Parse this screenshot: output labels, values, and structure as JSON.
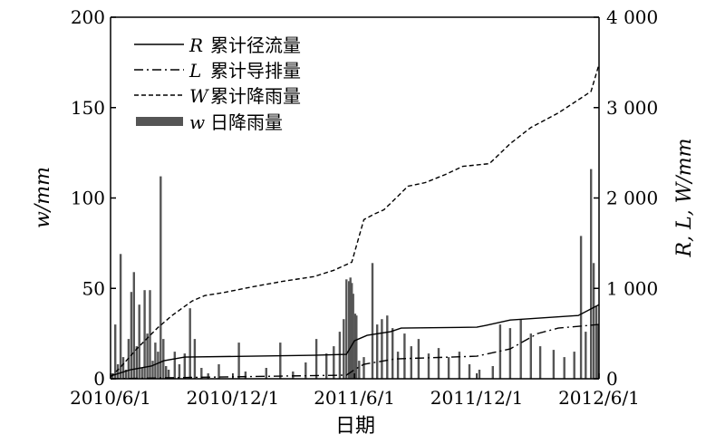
{
  "chart_data": {
    "type": "line",
    "xlabel": "日期",
    "ylabel_left": "w/mm",
    "ylabel_right": "R, L, W/mm",
    "x_ticks": [
      "2010/6/1",
      "2010/12/1",
      "2011/6/1",
      "2011/12/1",
      "2012/6/1"
    ],
    "left_axis": {
      "ylim": [
        0,
        200
      ],
      "ticks": [
        "0",
        "50",
        "100",
        "150",
        "200"
      ]
    },
    "right_axis": {
      "ylim": [
        0,
        4000
      ],
      "ticks": [
        "0",
        "1 000",
        "2 000",
        "3 000",
        "4 000"
      ]
    },
    "grid": false,
    "legend_position": "top-left",
    "legend": [
      {
        "symbol": "R",
        "label": "累计径流量",
        "style": "solid"
      },
      {
        "symbol": "L",
        "label": "累计导排量",
        "style": "dashdot"
      },
      {
        "symbol": "W",
        "label": "累计降雨量",
        "style": "dashed"
      },
      {
        "symbol": "w",
        "label": "日降雨量",
        "style": "bar"
      }
    ],
    "series": [
      {
        "name": "R 累计径流量",
        "axis": "right",
        "style": "solid",
        "points": [
          [
            "2010-06-01",
            30
          ],
          [
            "2010-07-01",
            100
          ],
          [
            "2010-08-01",
            140
          ],
          [
            "2010-08-20",
            200
          ],
          [
            "2010-09-20",
            240
          ],
          [
            "2011-04-01",
            260
          ],
          [
            "2011-05-20",
            270
          ],
          [
            "2011-06-01",
            420
          ],
          [
            "2011-06-20",
            480
          ],
          [
            "2011-07-25",
            520
          ],
          [
            "2011-08-10",
            560
          ],
          [
            "2011-12-01",
            570
          ],
          [
            "2011-12-15",
            590
          ],
          [
            "2012-01-20",
            650
          ],
          [
            "2012-05-01",
            700
          ],
          [
            "2012-06-01",
            820
          ]
        ]
      },
      {
        "name": "L 累计导排量",
        "axis": "right",
        "style": "dashdot",
        "points": [
          [
            "2010-06-01",
            0
          ],
          [
            "2010-10-01",
            15
          ],
          [
            "2011-05-20",
            40
          ],
          [
            "2011-06-01",
            100
          ],
          [
            "2011-06-15",
            160
          ],
          [
            "2011-08-01",
            220
          ],
          [
            "2011-12-01",
            250
          ],
          [
            "2012-01-20",
            330
          ],
          [
            "2012-03-01",
            500
          ],
          [
            "2012-04-01",
            560
          ],
          [
            "2012-06-01",
            600
          ]
        ]
      },
      {
        "name": "W 累计降雨量",
        "axis": "right",
        "style": "dashed",
        "points": [
          [
            "2010-06-01",
            20
          ],
          [
            "2010-06-15",
            120
          ],
          [
            "2010-07-10",
            330
          ],
          [
            "2010-08-10",
            560
          ],
          [
            "2010-09-01",
            700
          ],
          [
            "2010-10-01",
            860
          ],
          [
            "2010-10-20",
            920
          ],
          [
            "2010-11-15",
            950
          ],
          [
            "2011-01-01",
            1020
          ],
          [
            "2011-02-15",
            1080
          ],
          [
            "2011-04-01",
            1130
          ],
          [
            "2011-05-01",
            1200
          ],
          [
            "2011-05-28",
            1290
          ],
          [
            "2011-06-05",
            1500
          ],
          [
            "2011-06-15",
            1760
          ],
          [
            "2011-06-30",
            1820
          ],
          [
            "2011-07-15",
            1870
          ],
          [
            "2011-08-05",
            2020
          ],
          [
            "2011-08-20",
            2130
          ],
          [
            "2011-09-15",
            2170
          ],
          [
            "2011-10-15",
            2260
          ],
          [
            "2011-11-10",
            2350
          ],
          [
            "2011-12-20",
            2380
          ],
          [
            "2012-01-20",
            2600
          ],
          [
            "2012-02-20",
            2780
          ],
          [
            "2012-04-01",
            2940
          ],
          [
            "2012-05-10",
            3130
          ],
          [
            "2012-05-20",
            3180
          ],
          [
            "2012-06-01",
            3480
          ]
        ]
      }
    ],
    "daily_rainfall": {
      "name": "w 日降雨量",
      "axis": "left",
      "points": [
        [
          "2010-06-04",
          3
        ],
        [
          "2010-06-08",
          30
        ],
        [
          "2010-06-12",
          8
        ],
        [
          "2010-06-16",
          69
        ],
        [
          "2010-06-20",
          12
        ],
        [
          "2010-06-24",
          5
        ],
        [
          "2010-06-28",
          22
        ],
        [
          "2010-07-02",
          48
        ],
        [
          "2010-07-06",
          59
        ],
        [
          "2010-07-10",
          18
        ],
        [
          "2010-07-14",
          41
        ],
        [
          "2010-07-18",
          6
        ],
        [
          "2010-07-22",
          49
        ],
        [
          "2010-07-26",
          25
        ],
        [
          "2010-07-30",
          49
        ],
        [
          "2010-08-03",
          10
        ],
        [
          "2010-08-07",
          20
        ],
        [
          "2010-08-11",
          15
        ],
        [
          "2010-08-15",
          112
        ],
        [
          "2010-08-19",
          22
        ],
        [
          "2010-08-23",
          7
        ],
        [
          "2010-08-27",
          5
        ],
        [
          "2010-09-05",
          15
        ],
        [
          "2010-09-12",
          8
        ],
        [
          "2010-09-20",
          14
        ],
        [
          "2010-09-28",
          39
        ],
        [
          "2010-10-05",
          22
        ],
        [
          "2010-10-15",
          6
        ],
        [
          "2010-10-25",
          3
        ],
        [
          "2010-11-10",
          8
        ],
        [
          "2010-12-10",
          20
        ],
        [
          "2010-12-20",
          4
        ],
        [
          "2011-01-20",
          6
        ],
        [
          "2011-02-10",
          20
        ],
        [
          "2011-03-01",
          4
        ],
        [
          "2011-03-20",
          9
        ],
        [
          "2011-04-05",
          22
        ],
        [
          "2011-04-20",
          14
        ],
        [
          "2011-05-01",
          18
        ],
        [
          "2011-05-10",
          26
        ],
        [
          "2011-05-16",
          33
        ],
        [
          "2011-05-20",
          55
        ],
        [
          "2011-05-24",
          54
        ],
        [
          "2011-05-26",
          56
        ],
        [
          "2011-05-28",
          53
        ],
        [
          "2011-05-30",
          47
        ],
        [
          "2011-06-02",
          36
        ],
        [
          "2011-06-04",
          35
        ],
        [
          "2011-06-08",
          10
        ],
        [
          "2011-06-15",
          12
        ],
        [
          "2011-06-28",
          64
        ],
        [
          "2011-07-05",
          30
        ],
        [
          "2011-07-12",
          33
        ],
        [
          "2011-07-20",
          35
        ],
        [
          "2011-07-28",
          28
        ],
        [
          "2011-08-05",
          15
        ],
        [
          "2011-08-15",
          25
        ],
        [
          "2011-08-25",
          18
        ],
        [
          "2011-09-05",
          22
        ],
        [
          "2011-09-20",
          14
        ],
        [
          "2011-10-05",
          17
        ],
        [
          "2011-10-20",
          12
        ],
        [
          "2011-11-05",
          15
        ],
        [
          "2011-11-20",
          8
        ],
        [
          "2011-12-05",
          5
        ],
        [
          "2011-12-25",
          7
        ],
        [
          "2012-01-05",
          30
        ],
        [
          "2012-01-20",
          28
        ],
        [
          "2012-02-05",
          33
        ],
        [
          "2012-02-20",
          25
        ],
        [
          "2012-03-05",
          18
        ],
        [
          "2012-03-25",
          16
        ],
        [
          "2012-04-10",
          12
        ],
        [
          "2012-04-25",
          15
        ],
        [
          "2012-05-05",
          79
        ],
        [
          "2012-05-12",
          26
        ],
        [
          "2012-05-20",
          116
        ],
        [
          "2012-05-24",
          64
        ],
        [
          "2012-05-28",
          40
        ],
        [
          "2012-05-31",
          30
        ]
      ]
    }
  }
}
